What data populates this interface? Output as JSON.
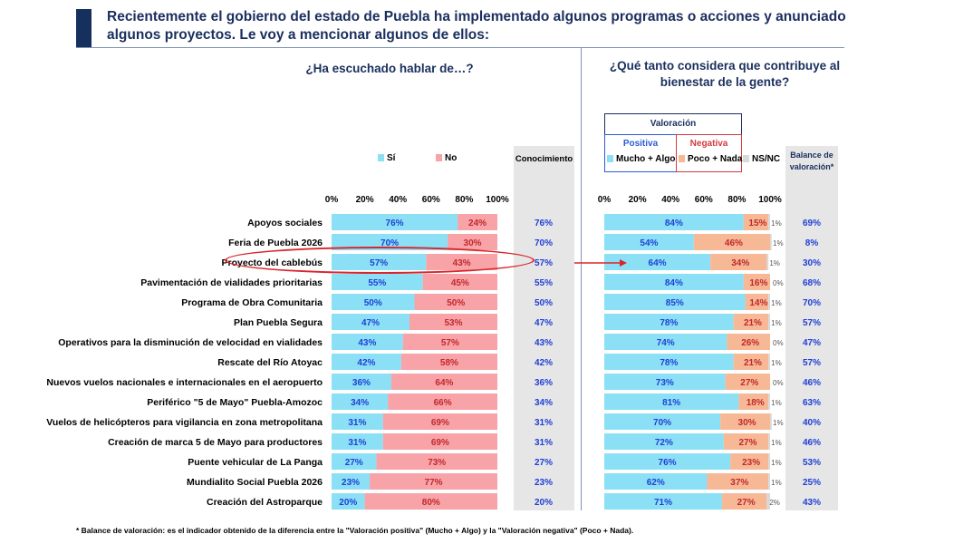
{
  "title": "Recientemente el gobierno del estado de Puebla ha implementado algunos programas o acciones y anunciado algunos proyectos. Le voy a mencionar algunos de ellos:",
  "left_question": "¿Ha escuchado hablar de…?",
  "right_question": "¿Qué tanto considera que contribuye al bienestar de la gente?",
  "legend": {
    "si": "Sí",
    "no": "No",
    "conocimiento": "Conocimiento",
    "valoracion": "Valoración",
    "positiva": "Positiva",
    "negativa": "Negativa",
    "mucho_algo": "Mucho + Algo",
    "poco_nada": "Poco + Nada",
    "nsnc": "NS/NC",
    "balance": "Balance de valoración*"
  },
  "axis_ticks": [
    "0%",
    "20%",
    "40%",
    "60%",
    "80%",
    "100%"
  ],
  "footnote": "* Balance de valoración: es el indicador obtenido de la diferencia entre la \"Valoración positiva\" (Mucho + Algo) y la \"Valoración negativa\" (Poco + Nada).",
  "colors": {
    "title": "#1a2f5e",
    "si_bar": "#8be0f5",
    "no_bar": "#f7a3a8",
    "pos_bar": "#8be0f5",
    "neg_bar": "#f7b896",
    "nsnc_bar": "#d9d9d9",
    "value_blue": "#1f3fd6",
    "value_red": "#c0282c",
    "highlight": "#d9252b"
  },
  "chart_data": {
    "type": "bar",
    "stacked": true,
    "highlighted_category": "Proyecto del cablebús",
    "categories": [
      "Apoyos sociales",
      "Feria de Puebla 2026",
      "Proyecto del cablebús",
      "Pavimentación de vialidades prioritarias",
      "Programa de Obra Comunitaria",
      "Plan Puebla Segura",
      "Operativos para la disminución de velocidad en vialidades",
      "Rescate del Río Atoyac",
      "Nuevos vuelos nacionales e internacionales en el aeropuerto",
      "Periférico \"5 de Mayo\" Puebla-Amozoc",
      "Vuelos de helicópteros para vigilancia en zona metropolitana",
      "Creación de marca 5 de Mayo para productores",
      "Puente vehicular de La Panga",
      "Mundialito Social Puebla 2026",
      "Creación del Astroparque"
    ],
    "awareness": {
      "xlim": [
        0,
        100
      ],
      "series": [
        {
          "name": "Sí",
          "values": [
            76,
            70,
            57,
            55,
            50,
            47,
            43,
            42,
            36,
            34,
            31,
            31,
            27,
            23,
            20
          ]
        },
        {
          "name": "No",
          "values": [
            24,
            30,
            43,
            45,
            50,
            53,
            57,
            58,
            64,
            66,
            69,
            69,
            73,
            77,
            80
          ]
        }
      ]
    },
    "conocimiento": [
      76,
      70,
      57,
      55,
      50,
      47,
      43,
      42,
      36,
      34,
      31,
      31,
      27,
      23,
      20
    ],
    "valuation": {
      "xlim": [
        0,
        100
      ],
      "series": [
        {
          "name": "Mucho + Algo",
          "values": [
            84,
            54,
            64,
            84,
            85,
            78,
            74,
            78,
            73,
            81,
            70,
            72,
            76,
            62,
            71
          ]
        },
        {
          "name": "Poco + Nada",
          "values": [
            15,
            46,
            34,
            16,
            14,
            21,
            26,
            21,
            27,
            18,
            30,
            27,
            23,
            37,
            27
          ]
        },
        {
          "name": "NS/NC",
          "values": [
            1,
            1,
            1,
            0,
            1,
            1,
            0,
            1,
            0,
            1,
            1,
            1,
            1,
            1,
            2
          ]
        }
      ]
    },
    "balance": [
      69,
      8,
      30,
      68,
      70,
      57,
      47,
      57,
      46,
      63,
      40,
      46,
      53,
      25,
      43
    ]
  }
}
